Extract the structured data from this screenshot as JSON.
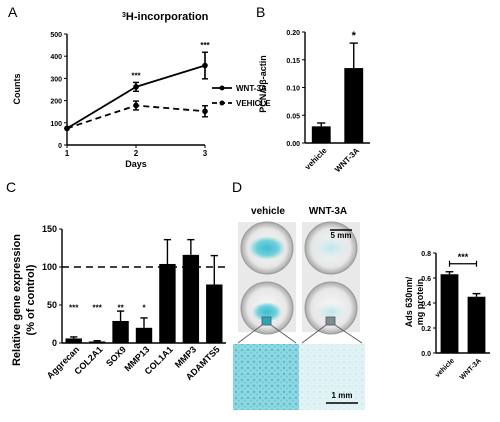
{
  "chart_data": [
    {
      "panel": "A",
      "type": "line",
      "title_sup": "3",
      "title": "H-incorporation",
      "xlabel": "Days",
      "ylabel": "Counts",
      "x": [
        1,
        2,
        3
      ],
      "xlim": [
        1,
        3
      ],
      "xticks": [
        "1",
        "2",
        "3"
      ],
      "ylim": [
        0,
        500
      ],
      "yticks": [
        "0",
        "100",
        "200",
        "300",
        "400",
        "500"
      ],
      "series": [
        {
          "name": "WNT-3A",
          "values": [
            75,
            262,
            358
          ],
          "errors": [
            0,
            20,
            60
          ],
          "style": "solid"
        },
        {
          "name": "VEHICLE",
          "values": [
            75,
            178,
            152
          ],
          "errors": [
            0,
            20,
            25
          ],
          "style": "dashed"
        }
      ],
      "annotations": [
        {
          "x": 2,
          "text": "***"
        },
        {
          "x": 3,
          "text": "***"
        }
      ],
      "legend": "right"
    },
    {
      "panel": "B",
      "type": "bar",
      "ylabel": "PCNA/β-actin",
      "categories": [
        "vehicle",
        "WNT-3A"
      ],
      "values": [
        0.03,
        0.135
      ],
      "errors": [
        0.006,
        0.045
      ],
      "colors": [
        "#000000",
        "#000000"
      ],
      "ylim": [
        0,
        0.2
      ],
      "yticks": [
        "0.00",
        "0.05",
        "0.10",
        "0.15",
        "0.20"
      ],
      "annotations": [
        {
          "category": "WNT-3A",
          "text": "*"
        }
      ]
    },
    {
      "panel": "C",
      "type": "bar",
      "ylabel": [
        "Relative gene expression",
        "(% of control)"
      ],
      "categories": [
        "Aggrecan",
        "COL2A1",
        "SOX9",
        "MMP13",
        "COL1A1",
        "MMP3",
        "ADAMTS5"
      ],
      "values": [
        6,
        2,
        29,
        20,
        104,
        116,
        77
      ],
      "errors": [
        2,
        1,
        13,
        13,
        32,
        20,
        38
      ],
      "ylim": [
        0,
        150
      ],
      "yticks": [
        "0",
        "50",
        "100",
        "150"
      ],
      "reference_line": 100,
      "annotations": [
        "***",
        "***",
        "**",
        "*",
        "",
        "",
        ""
      ]
    },
    {
      "panel": "D",
      "type": "bar",
      "ylabel": [
        "Ads 630nm/",
        "mg protein"
      ],
      "categories": [
        "vehicle",
        "WNT-3A"
      ],
      "values": [
        0.63,
        0.45
      ],
      "errors": [
        0.02,
        0.025
      ],
      "ylim": [
        0,
        0.8
      ],
      "yticks": [
        "0.0",
        "0.2",
        "0.4",
        "0.6",
        "0.8"
      ],
      "annotations": [
        {
          "text": "***",
          "bracket": [
            "vehicle",
            "WNT-3A"
          ]
        }
      ]
    }
  ],
  "panels": {
    "a": "A",
    "b": "B",
    "c": "C",
    "d": "D"
  },
  "photo": {
    "vehicle_label": "vehicle",
    "wnt_label": "WNT-3A",
    "scale_top": "5 mm",
    "scale_bottom": "1 mm",
    "stain_color": "#4fc4d4"
  }
}
